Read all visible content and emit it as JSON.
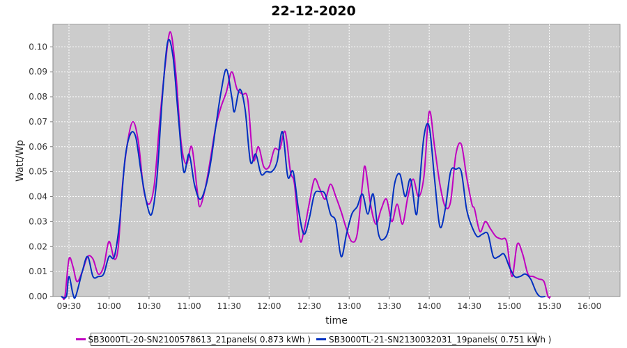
{
  "chart_data": {
    "type": "line",
    "title": "22-12-2020",
    "xlabel": "time",
    "ylabel": "Watt/Wp",
    "x_ticks": [
      "09:30",
      "10:00",
      "10:30",
      "11:00",
      "11:30",
      "12:00",
      "12:30",
      "13:00",
      "13:30",
      "14:00",
      "14:30",
      "15:00",
      "15:30",
      "16:00"
    ],
    "y_ticks": [
      "0.00",
      "0.01",
      "0.02",
      "0.03",
      "0.04",
      "0.05",
      "0.06",
      "0.07",
      "0.08",
      "0.09",
      "0.10"
    ],
    "xlim": [
      "09:18",
      "16:23"
    ],
    "ylim": [
      0,
      0.109
    ],
    "grid": true,
    "legend_position": "bottom",
    "series": [
      {
        "name": "SB3000TL-20-SN2100578613_21panels( 0.873 kWh )",
        "color": "#c000c0",
        "points": [
          [
            "09:25",
            0.0
          ],
          [
            "09:27",
            0.0
          ],
          [
            "09:30",
            0.015
          ],
          [
            "09:33",
            0.012
          ],
          [
            "09:36",
            0.006
          ],
          [
            "09:40",
            0.01
          ],
          [
            "09:44",
            0.016
          ],
          [
            "09:48",
            0.015
          ],
          [
            "09:52",
            0.009
          ],
          [
            "09:56",
            0.012
          ],
          [
            "10:00",
            0.022
          ],
          [
            "10:04",
            0.015
          ],
          [
            "10:07",
            0.02
          ],
          [
            "10:10",
            0.044
          ],
          [
            "10:14",
            0.062
          ],
          [
            "10:18",
            0.07
          ],
          [
            "10:22",
            0.062
          ],
          [
            "10:26",
            0.043
          ],
          [
            "10:30",
            0.037
          ],
          [
            "10:34",
            0.045
          ],
          [
            "10:38",
            0.07
          ],
          [
            "10:42",
            0.092
          ],
          [
            "10:46",
            0.106
          ],
          [
            "10:50",
            0.09
          ],
          [
            "10:54",
            0.062
          ],
          [
            "10:58",
            0.053
          ],
          [
            "11:02",
            0.06
          ],
          [
            "11:06",
            0.043
          ],
          [
            "11:08",
            0.036
          ],
          [
            "11:12",
            0.043
          ],
          [
            "11:16",
            0.055
          ],
          [
            "11:20",
            0.068
          ],
          [
            "11:24",
            0.076
          ],
          [
            "11:28",
            0.082
          ],
          [
            "11:32",
            0.09
          ],
          [
            "11:36",
            0.083
          ],
          [
            "11:40",
            0.081
          ],
          [
            "11:44",
            0.079
          ],
          [
            "11:48",
            0.055
          ],
          [
            "11:52",
            0.06
          ],
          [
            "11:56",
            0.052
          ],
          [
            "12:00",
            0.052
          ],
          [
            "12:04",
            0.059
          ],
          [
            "12:08",
            0.059
          ],
          [
            "12:12",
            0.066
          ],
          [
            "12:16",
            0.05
          ],
          [
            "12:19",
            0.045
          ],
          [
            "12:23",
            0.023
          ],
          [
            "12:26",
            0.026
          ],
          [
            "12:30",
            0.037
          ],
          [
            "12:34",
            0.047
          ],
          [
            "12:38",
            0.043
          ],
          [
            "12:42",
            0.039
          ],
          [
            "12:46",
            0.045
          ],
          [
            "12:50",
            0.04
          ],
          [
            "12:54",
            0.034
          ],
          [
            "12:58",
            0.027
          ],
          [
            "13:02",
            0.022
          ],
          [
            "13:06",
            0.025
          ],
          [
            "13:10",
            0.045
          ],
          [
            "13:12",
            0.052
          ],
          [
            "13:16",
            0.037
          ],
          [
            "13:20",
            0.029
          ],
          [
            "13:24",
            0.035
          ],
          [
            "13:28",
            0.039
          ],
          [
            "13:32",
            0.03
          ],
          [
            "13:36",
            0.037
          ],
          [
            "13:40",
            0.029
          ],
          [
            "13:44",
            0.04
          ],
          [
            "13:48",
            0.047
          ],
          [
            "13:52",
            0.04
          ],
          [
            "13:56",
            0.048
          ],
          [
            "14:00",
            0.074
          ],
          [
            "14:04",
            0.06
          ],
          [
            "14:08",
            0.045
          ],
          [
            "14:12",
            0.036
          ],
          [
            "14:16",
            0.038
          ],
          [
            "14:20",
            0.057
          ],
          [
            "14:24",
            0.061
          ],
          [
            "14:28",
            0.048
          ],
          [
            "14:32",
            0.037
          ],
          [
            "14:34",
            0.035
          ],
          [
            "14:38",
            0.026
          ],
          [
            "14:42",
            0.03
          ],
          [
            "14:46",
            0.027
          ],
          [
            "14:50",
            0.024
          ],
          [
            "14:54",
            0.023
          ],
          [
            "14:58",
            0.022
          ],
          [
            "15:02",
            0.008
          ],
          [
            "15:06",
            0.021
          ],
          [
            "15:10",
            0.017
          ],
          [
            "15:14",
            0.009
          ],
          [
            "15:18",
            0.008
          ],
          [
            "15:22",
            0.007
          ],
          [
            "15:26",
            0.006
          ],
          [
            "15:29",
            0.0
          ],
          [
            "15:31",
            0.0
          ]
        ]
      },
      {
        "name": "SB3000TL-21-SN2130032031_19panels( 0.751 kWh )",
        "color": "#0030c0",
        "points": [
          [
            "09:24",
            0.0
          ],
          [
            "09:28",
            0.0
          ],
          [
            "09:30",
            0.008
          ],
          [
            "09:33",
            0.001
          ],
          [
            "09:35",
            0.0
          ],
          [
            "09:40",
            0.01
          ],
          [
            "09:44",
            0.016
          ],
          [
            "09:48",
            0.008
          ],
          [
            "09:52",
            0.008
          ],
          [
            "09:56",
            0.009
          ],
          [
            "10:00",
            0.016
          ],
          [
            "10:04",
            0.016
          ],
          [
            "10:08",
            0.03
          ],
          [
            "10:12",
            0.055
          ],
          [
            "10:16",
            0.065
          ],
          [
            "10:20",
            0.064
          ],
          [
            "10:24",
            0.05
          ],
          [
            "10:28",
            0.038
          ],
          [
            "10:32",
            0.033
          ],
          [
            "10:36",
            0.048
          ],
          [
            "10:40",
            0.08
          ],
          [
            "10:44",
            0.102
          ],
          [
            "10:48",
            0.096
          ],
          [
            "10:52",
            0.072
          ],
          [
            "10:56",
            0.05
          ],
          [
            "11:00",
            0.057
          ],
          [
            "11:04",
            0.045
          ],
          [
            "11:08",
            0.039
          ],
          [
            "11:12",
            0.043
          ],
          [
            "11:16",
            0.053
          ],
          [
            "11:20",
            0.068
          ],
          [
            "11:24",
            0.082
          ],
          [
            "11:28",
            0.091
          ],
          [
            "11:32",
            0.08
          ],
          [
            "11:34",
            0.074
          ],
          [
            "11:38",
            0.083
          ],
          [
            "11:42",
            0.075
          ],
          [
            "11:46",
            0.054
          ],
          [
            "11:50",
            0.057
          ],
          [
            "11:54",
            0.049
          ],
          [
            "11:58",
            0.05
          ],
          [
            "12:02",
            0.05
          ],
          [
            "12:06",
            0.054
          ],
          [
            "12:10",
            0.066
          ],
          [
            "12:14",
            0.048
          ],
          [
            "12:18",
            0.05
          ],
          [
            "12:22",
            0.035
          ],
          [
            "12:26",
            0.025
          ],
          [
            "12:30",
            0.031
          ],
          [
            "12:34",
            0.041
          ],
          [
            "12:38",
            0.042
          ],
          [
            "12:42",
            0.041
          ],
          [
            "12:46",
            0.033
          ],
          [
            "12:50",
            0.03
          ],
          [
            "12:54",
            0.016
          ],
          [
            "12:58",
            0.025
          ],
          [
            "13:02",
            0.033
          ],
          [
            "13:06",
            0.036
          ],
          [
            "13:10",
            0.041
          ],
          [
            "13:14",
            0.033
          ],
          [
            "13:18",
            0.041
          ],
          [
            "13:22",
            0.025
          ],
          [
            "13:26",
            0.023
          ],
          [
            "13:30",
            0.028
          ],
          [
            "13:34",
            0.045
          ],
          [
            "13:38",
            0.049
          ],
          [
            "13:42",
            0.04
          ],
          [
            "13:46",
            0.047
          ],
          [
            "13:50",
            0.033
          ],
          [
            "13:52",
            0.04
          ],
          [
            "13:56",
            0.064
          ],
          [
            "14:00",
            0.068
          ],
          [
            "14:04",
            0.047
          ],
          [
            "14:08",
            0.028
          ],
          [
            "14:12",
            0.035
          ],
          [
            "14:16",
            0.05
          ],
          [
            "14:20",
            0.051
          ],
          [
            "14:24",
            0.05
          ],
          [
            "14:28",
            0.035
          ],
          [
            "14:32",
            0.028
          ],
          [
            "14:36",
            0.024
          ],
          [
            "14:40",
            0.025
          ],
          [
            "14:44",
            0.025
          ],
          [
            "14:48",
            0.016
          ],
          [
            "14:52",
            0.016
          ],
          [
            "14:56",
            0.017
          ],
          [
            "15:00",
            0.012
          ],
          [
            "15:04",
            0.008
          ],
          [
            "15:08",
            0.008
          ],
          [
            "15:12",
            0.009
          ],
          [
            "15:16",
            0.007
          ],
          [
            "15:20",
            0.002
          ],
          [
            "15:23",
            0.0
          ],
          [
            "15:27",
            0.0
          ]
        ]
      }
    ]
  }
}
